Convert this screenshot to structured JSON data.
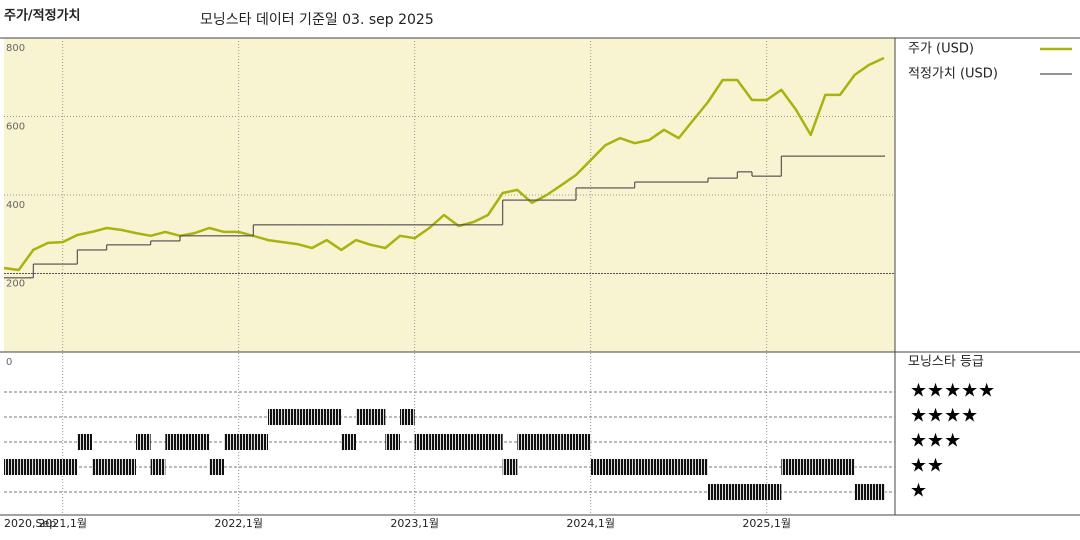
{
  "chart_data": {
    "type": "line",
    "title": "주가/적정가치",
    "subtitle": "모닝스타 데이터 기준일 03. sep 2025",
    "x": [
      "2020-09",
      "2020-10",
      "2020-11",
      "2020-12",
      "2021-01",
      "2021-02",
      "2021-03",
      "2021-04",
      "2021-05",
      "2021-06",
      "2021-07",
      "2021-08",
      "2021-09",
      "2021-10",
      "2021-11",
      "2021-12",
      "2022-01",
      "2022-02",
      "2022-03",
      "2022-04",
      "2022-05",
      "2022-06",
      "2022-07",
      "2022-08",
      "2022-09",
      "2022-10",
      "2022-11",
      "2022-12",
      "2023-01",
      "2023-02",
      "2023-03",
      "2023-04",
      "2023-05",
      "2023-06",
      "2023-07",
      "2023-08",
      "2023-09",
      "2023-10",
      "2023-11",
      "2023-12",
      "2024-01",
      "2024-02",
      "2024-03",
      "2024-04",
      "2024-05",
      "2024-06",
      "2024-07",
      "2024-08",
      "2024-09",
      "2024-10",
      "2024-11",
      "2024-12",
      "2025-01",
      "2025-02",
      "2025-03",
      "2025-04",
      "2025-05",
      "2025-06",
      "2025-07",
      "2025-08",
      "2025-09"
    ],
    "series": [
      {
        "name": "주가 (USD)",
        "color": "#a9b20f",
        "values": [
          214,
          209,
          260,
          278,
          280,
          298,
          306,
          316,
          311,
          303,
          296,
          306,
          296,
          303,
          316,
          306,
          306,
          296,
          285,
          280,
          275,
          265,
          285,
          260,
          285,
          273,
          265,
          296,
          290,
          316,
          349,
          321,
          331,
          349,
          405,
          413,
          380,
          400,
          425,
          451,
          489,
          527,
          545,
          532,
          540,
          566,
          545,
          591,
          637,
          693,
          693,
          642,
          642,
          668,
          617,
          553,
          655,
          655,
          706,
          732,
          749
        ]
      },
      {
        "name": "적정가치 (USD)",
        "color": "#555555",
        "step": true,
        "values": [
          189,
          189,
          224,
          224,
          224,
          260,
          260,
          273,
          273,
          273,
          283,
          283,
          296,
          296,
          296,
          296,
          296,
          324,
          324,
          324,
          324,
          324,
          324,
          324,
          324,
          324,
          324,
          324,
          324,
          324,
          324,
          324,
          324,
          324,
          387,
          387,
          387,
          387,
          387,
          418,
          418,
          418,
          418,
          433,
          433,
          433,
          433,
          433,
          443,
          443,
          459,
          448,
          448,
          499,
          499,
          499,
          499,
          499,
          499,
          499,
          499
        ]
      }
    ],
    "ylim": [
      0,
      800
    ],
    "yticks": [
      0,
      200,
      400,
      600,
      800
    ],
    "xticks": [
      {
        "value": "2020-09",
        "label": "2020,Sep"
      },
      {
        "value": "2021-01",
        "label": "2021,1월"
      },
      {
        "value": "2022-01",
        "label": "2022,1월"
      },
      {
        "value": "2023-01",
        "label": "2023,1월"
      },
      {
        "value": "2024-01",
        "label": "2024,1월"
      },
      {
        "value": "2025-01",
        "label": "2025,1월"
      }
    ],
    "grid": true,
    "background": "#f8f4d2",
    "ratings": {
      "title": "모닝스타 등급",
      "levels": [
        5,
        4,
        3,
        2,
        1
      ],
      "labels": [
        "★★★★★",
        "★★★★",
        "★★★",
        "★★",
        "★"
      ],
      "values": [
        2,
        2,
        2,
        2,
        2,
        3,
        2,
        2,
        2,
        3,
        2,
        3,
        3,
        3,
        2,
        3,
        3,
        3,
        4,
        4,
        4,
        4,
        4,
        3,
        4,
        4,
        3,
        4,
        3,
        3,
        3,
        3,
        3,
        3,
        2,
        3,
        3,
        3,
        3,
        3,
        2,
        2,
        2,
        2,
        2,
        2,
        2,
        2,
        1,
        1,
        1,
        1,
        1,
        2,
        2,
        2,
        2,
        2,
        1,
        1,
        1
      ]
    }
  }
}
